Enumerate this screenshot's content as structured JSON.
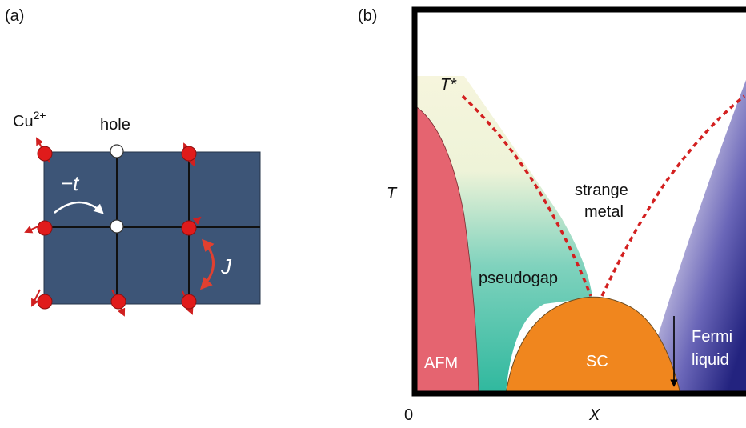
{
  "panel_a": {
    "tag": "(a)",
    "cu_label": "Cu",
    "cu_superscript": "2+",
    "hole_label": "hole",
    "hopping_label": "−t",
    "exchange_label": "J",
    "colors": {
      "lattice": "#3d5577",
      "atom": "#e01b1b",
      "hole": "#ffffff",
      "spin_arrow": "#d02020",
      "hop_arrow": "#ffffff",
      "exchange_arrow": "#e04030"
    }
  },
  "panel_b": {
    "tag": "(b)",
    "y_axis_label": "T",
    "x_axis_label": "X",
    "x_origin_label": "0",
    "tstar_label": "T*",
    "regions": {
      "afm": "AFM",
      "pseudogap": "pseudogap",
      "strange_metal_line1": "strange",
      "strange_metal_line2": "metal",
      "sc": "SC",
      "fermi_line1": "Fermi",
      "fermi_line2": "liquid"
    },
    "colors": {
      "afm": "#e56470",
      "pseudogap_top": "#f6f5dd",
      "pseudogap_bottom": "#2fb89e",
      "sc": "#f0861e",
      "fermi_liquid": "#2a2a8e",
      "crossover_dashes": "#d32020",
      "frame": "#000000"
    }
  }
}
